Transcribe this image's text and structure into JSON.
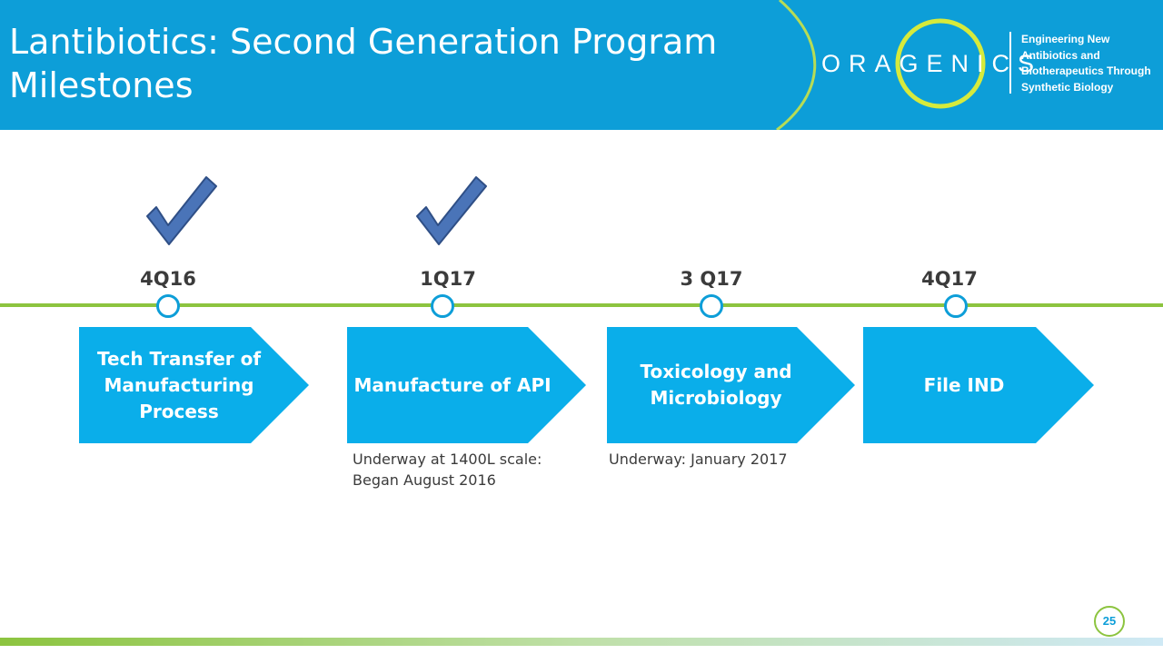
{
  "header": {
    "title_line1": "Lantibiotics: Second Generation Program",
    "title_line2": "Milestones",
    "brand": "ORAGENICS",
    "tagline": [
      "Engineering New",
      "Antibiotics and",
      "Biotherapeutics Through",
      "Synthetic Biology"
    ]
  },
  "milestones": [
    {
      "date": "4Q16",
      "completed": true,
      "task_lines": [
        "Tech Transfer of",
        "Manufacturing",
        "Process"
      ],
      "note_lines": []
    },
    {
      "date": "1Q17",
      "completed": true,
      "task_lines": [
        "Manufacture of API"
      ],
      "note_lines": [
        "Underway at 1400L scale:",
        "Began August 2016"
      ]
    },
    {
      "date": "3 Q17",
      "completed": false,
      "task_lines": [
        "Toxicology and",
        "Microbiology"
      ],
      "note_lines": [
        "Underway: January 2017"
      ]
    },
    {
      "date": "4Q17",
      "completed": false,
      "task_lines": [
        "File IND"
      ],
      "note_lines": []
    }
  ],
  "page_number": "25",
  "colors": {
    "header_blue": "#0d9ed8",
    "arrow_blue": "#0aaeea",
    "accent_green": "#8cc43f",
    "check_blue": "#4a74b8"
  },
  "icons": {
    "completed": "checkmark-icon"
  }
}
